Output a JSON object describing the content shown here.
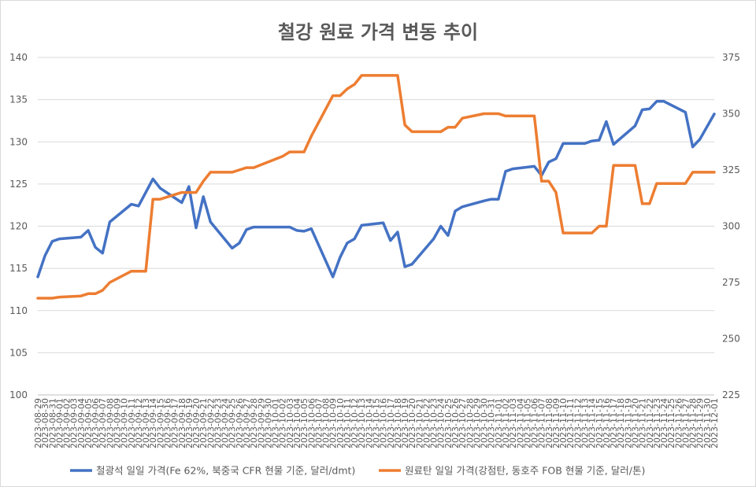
{
  "chart_data": {
    "type": "line",
    "title": "철강 원료 가격 변동 추이",
    "ylim_left": [
      100,
      140
    ],
    "ylim_right": [
      225,
      375
    ],
    "yticks_left": [
      100,
      105,
      110,
      115,
      120,
      125,
      130,
      135,
      140
    ],
    "yticks_right": [
      225,
      250,
      275,
      300,
      325,
      350,
      375
    ],
    "grid": true,
    "legend_position": "bottom",
    "x": [
      "2023-08-29",
      "2023-08-30",
      "2023-08-31",
      "2023-09-01",
      "2023-09-04",
      "2023-09-05",
      "2023-09-06",
      "2023-09-07",
      "2023-09-08",
      "2023-09-11",
      "2023-09-12",
      "2023-09-13",
      "2023-09-14",
      "2023-09-15",
      "2023-09-18",
      "2023-09-19",
      "2023-09-20",
      "2023-09-21",
      "2023-09-22",
      "2023-09-25",
      "2023-09-26",
      "2023-09-27",
      "2023-09-28",
      "2023-10-02",
      "2023-10-03",
      "2023-10-04",
      "2023-10-05",
      "2023-10-06",
      "2023-10-09",
      "2023-10-10",
      "2023-10-11",
      "2023-10-12",
      "2023-10-13",
      "2023-10-16",
      "2023-10-17",
      "2023-10-18",
      "2023-10-19",
      "2023-10-20",
      "2023-10-23",
      "2023-10-24",
      "2023-10-25",
      "2023-10-26",
      "2023-10-27",
      "2023-10-30",
      "2023-10-31",
      "2023-11-01",
      "2023-11-02",
      "2023-11-03",
      "2023-11-06",
      "2023-11-07",
      "2023-11-08",
      "2023-11-09",
      "2023-11-10",
      "2023-11-13",
      "2023-11-14",
      "2023-11-15",
      "2023-11-16",
      "2023-11-17",
      "2023-11-20",
      "2023-11-21",
      "2023-11-22",
      "2023-11-23",
      "2023-11-24",
      "2023-11-27",
      "2023-11-28",
      "2023-11-29",
      "2023-11-30",
      "2023-12-01"
    ],
    "x_tick_labels": [
      "2023-08-29",
      "2023-08-30",
      "2023-08-31",
      "2023-09-01",
      "2023-09-02",
      "2023-09-03",
      "2023-09-04",
      "2023-09-05",
      "2023-09-06",
      "2023-09-07",
      "2023-09-08",
      "2023-09-09",
      "2023-09-10",
      "2023-09-11",
      "2023-09-12",
      "2023-09-13",
      "2023-09-14",
      "2023-09-15",
      "2023-09-16",
      "2023-09-17",
      "2023-09-18",
      "2023-09-19",
      "2023-09-20",
      "2023-09-21",
      "2023-09-22",
      "2023-09-23",
      "2023-09-24",
      "2023-09-25",
      "2023-09-26",
      "2023-09-27",
      "2023-09-28",
      "2023-09-29",
      "2023-09-30",
      "2023-10-01",
      "2023-10-02",
      "2023-10-03",
      "2023-10-04",
      "2023-10-05",
      "2023-10-06",
      "2023-10-07",
      "2023-10-08",
      "2023-10-09",
      "2023-10-10",
      "2023-10-11",
      "2023-10-12",
      "2023-10-13",
      "2023-10-14",
      "2023-10-15",
      "2023-10-16",
      "2023-10-17",
      "2023-10-18",
      "2023-10-19",
      "2023-10-20",
      "2023-10-21",
      "2023-10-22",
      "2023-10-23",
      "2023-10-24",
      "2023-10-25",
      "2023-10-26",
      "2023-10-27",
      "2023-10-28",
      "2023-10-29",
      "2023-10-30",
      "2023-10-31",
      "2023-11-01",
      "2023-11-02",
      "2023-11-03",
      "2023-11-04",
      "2023-11-05",
      "2023-11-06",
      "2023-11-07",
      "2023-11-08",
      "2023-11-09",
      "2023-11-10",
      "2023-11-11",
      "2023-11-12",
      "2023-11-13",
      "2023-11-14",
      "2023-11-15",
      "2023-11-16",
      "2023-11-17",
      "2023-11-18",
      "2023-11-19",
      "2023-11-20",
      "2023-11-21",
      "2023-11-22",
      "2023-11-23",
      "2023-11-24",
      "2023-11-25",
      "2023-11-26",
      "2023-11-27",
      "2023-11-28",
      "2023-11-29",
      "2023-11-30",
      "2023-12-01"
    ],
    "series": [
      {
        "name": "철광석 일일 가격(Fe 62%, 북중국 CFR 현물 기준, 달러/dmt)",
        "axis": "left",
        "color": "#4472C4",
        "values": [
          114.0,
          116.5,
          118.2,
          118.5,
          118.7,
          119.5,
          117.5,
          116.8,
          120.5,
          122.6,
          122.4,
          124.0,
          125.6,
          124.5,
          122.8,
          124.7,
          119.8,
          123.5,
          120.5,
          117.4,
          118.0,
          119.6,
          119.9,
          119.9,
          119.9,
          119.5,
          119.4,
          119.7,
          114.0,
          116.3,
          118.0,
          118.5,
          120.1,
          120.4,
          118.3,
          119.3,
          115.2,
          115.5,
          118.5,
          120.0,
          118.9,
          121.8,
          122.3,
          123.0,
          123.2,
          123.2,
          126.5,
          126.8,
          127.1,
          126.0,
          127.6,
          128.0,
          129.8,
          129.8,
          130.1,
          130.2,
          132.4,
          129.7,
          131.9,
          133.8,
          133.9,
          134.8,
          134.8,
          133.5,
          129.4,
          130.3,
          131.8,
          133.3
        ]
      },
      {
        "name": "원료탄 일일 가격(강점탄, 동호주 FOB 현물 기준, 달러/톤)",
        "axis": "right",
        "color": "#ED7D31",
        "values": [
          268,
          268,
          268,
          268.5,
          269,
          270,
          270,
          271.5,
          275,
          280,
          280,
          280,
          312,
          312,
          315,
          315,
          315,
          320,
          324,
          324,
          325,
          326,
          326,
          331,
          333,
          333,
          333,
          340,
          358,
          358,
          361,
          363,
          367,
          367,
          367,
          367,
          345,
          342,
          342,
          342,
          344,
          344,
          348,
          350,
          350,
          350,
          349,
          349,
          349,
          320,
          320,
          315,
          297,
          297,
          297,
          300,
          300,
          327,
          327,
          310,
          310,
          319,
          319,
          319,
          324,
          324,
          324,
          324
        ]
      }
    ]
  }
}
